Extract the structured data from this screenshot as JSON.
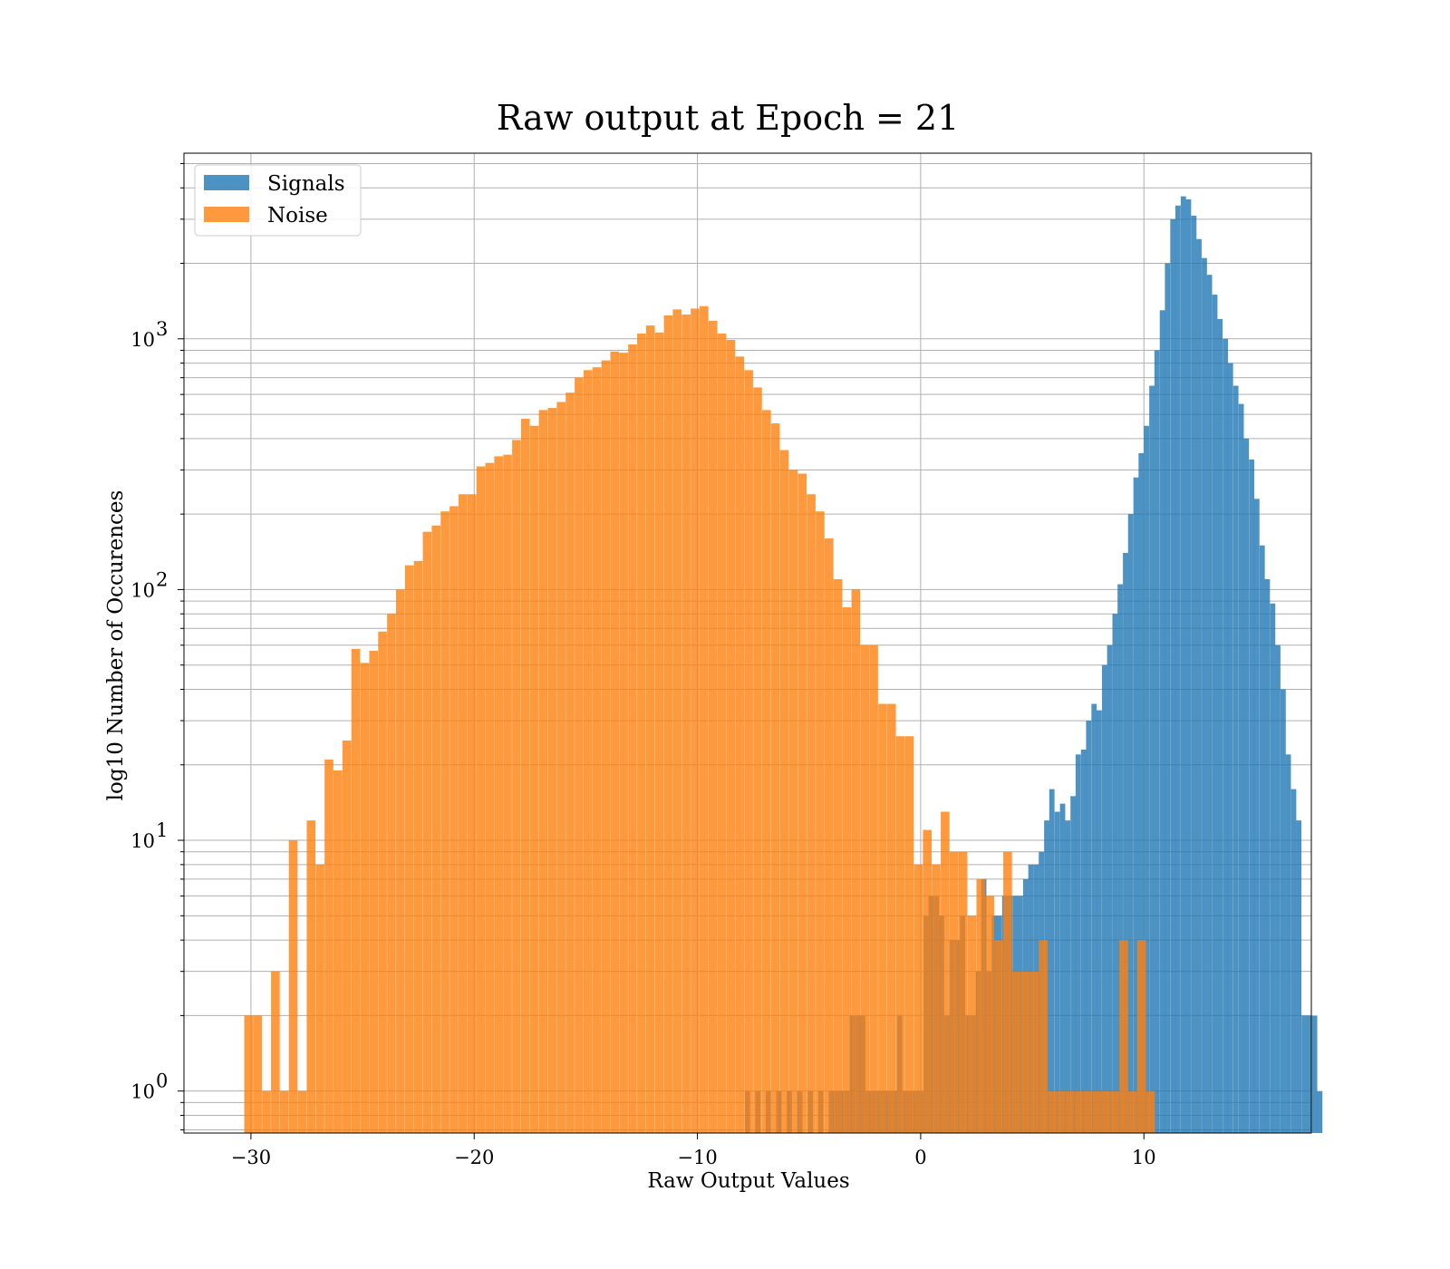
{
  "chart_data": {
    "type": "bar",
    "title": "Raw output at Epoch = 21",
    "xlabel": "Raw Output Values",
    "ylabel": "log10 Number of Occurences",
    "xlim": [
      -33,
      17.5
    ],
    "ylim": [
      0.68,
      5500
    ],
    "yscale": "log",
    "grid": true,
    "legend": "top-left",
    "x_ticks": [
      -30,
      -20,
      -10,
      0,
      10
    ],
    "x_tick_labels": [
      "−30",
      "−20",
      "−10",
      "0",
      "10"
    ],
    "y_ticks": [
      1,
      10,
      100,
      1000
    ],
    "y_tick_labels": [
      "10",
      "10",
      "10",
      "10"
    ],
    "y_tick_exponents": [
      "0",
      "1",
      "2",
      "3"
    ],
    "series": [
      {
        "name": "Signals",
        "color": "#1f77b4",
        "bin_width": 0.235,
        "bins": [
          [
            -7.88,
            1
          ],
          [
            -7.41,
            1
          ],
          [
            -6.94,
            1
          ],
          [
            -6.47,
            1
          ],
          [
            -6.0,
            1
          ],
          [
            -5.53,
            1
          ],
          [
            -5.06,
            1
          ],
          [
            -4.59,
            1
          ],
          [
            -4.12,
            1
          ],
          [
            -3.88,
            1
          ],
          [
            -3.65,
            1
          ],
          [
            -3.41,
            1
          ],
          [
            -3.18,
            2
          ],
          [
            -2.94,
            2
          ],
          [
            -2.71,
            2
          ],
          [
            -2.47,
            1
          ],
          [
            -2.24,
            1
          ],
          [
            -2.0,
            1
          ],
          [
            -1.76,
            1
          ],
          [
            -1.53,
            1
          ],
          [
            -1.29,
            1
          ],
          [
            -1.06,
            2
          ],
          [
            -0.82,
            1
          ],
          [
            -0.59,
            1
          ],
          [
            -0.35,
            1
          ],
          [
            -0.12,
            1
          ],
          [
            0.12,
            5
          ],
          [
            0.35,
            6
          ],
          [
            0.59,
            6
          ],
          [
            0.82,
            5
          ],
          [
            1.06,
            2
          ],
          [
            1.29,
            4
          ],
          [
            1.53,
            4
          ],
          [
            1.76,
            5
          ],
          [
            2.0,
            2
          ],
          [
            2.24,
            2
          ],
          [
            2.47,
            3
          ],
          [
            2.71,
            7
          ],
          [
            2.94,
            3
          ],
          [
            3.18,
            5
          ],
          [
            3.41,
            5
          ],
          [
            3.65,
            6
          ],
          [
            3.88,
            6
          ],
          [
            4.12,
            6
          ],
          [
            4.35,
            6
          ],
          [
            4.59,
            7
          ],
          [
            4.82,
            8
          ],
          [
            5.06,
            8
          ],
          [
            5.29,
            9
          ],
          [
            5.53,
            12
          ],
          [
            5.76,
            16
          ],
          [
            6.0,
            13
          ],
          [
            6.24,
            14
          ],
          [
            6.47,
            12
          ],
          [
            6.71,
            15
          ],
          [
            6.94,
            22
          ],
          [
            7.18,
            23
          ],
          [
            7.41,
            30
          ],
          [
            7.65,
            35
          ],
          [
            7.88,
            33
          ],
          [
            8.12,
            50
          ],
          [
            8.35,
            60
          ],
          [
            8.59,
            80
          ],
          [
            8.82,
            105
          ],
          [
            9.06,
            140
          ],
          [
            9.29,
            200
          ],
          [
            9.53,
            280
          ],
          [
            9.76,
            350
          ],
          [
            10.0,
            450
          ],
          [
            10.24,
            650
          ],
          [
            10.47,
            900
          ],
          [
            10.71,
            1300
          ],
          [
            10.94,
            2000
          ],
          [
            11.18,
            3000
          ],
          [
            11.41,
            3400
          ],
          [
            11.65,
            3700
          ],
          [
            11.88,
            3600
          ],
          [
            12.12,
            3100
          ],
          [
            12.35,
            2500
          ],
          [
            12.59,
            2100
          ],
          [
            12.82,
            1800
          ],
          [
            13.06,
            1500
          ],
          [
            13.29,
            1200
          ],
          [
            13.53,
            1000
          ],
          [
            13.76,
            800
          ],
          [
            14.0,
            650
          ],
          [
            14.24,
            550
          ],
          [
            14.47,
            400
          ],
          [
            14.71,
            330
          ],
          [
            14.94,
            230
          ],
          [
            15.18,
            150
          ],
          [
            15.41,
            110
          ],
          [
            15.65,
            88
          ],
          [
            15.88,
            60
          ],
          [
            16.12,
            40
          ],
          [
            16.35,
            22
          ],
          [
            16.59,
            16
          ],
          [
            16.82,
            12
          ],
          [
            17.06,
            2
          ],
          [
            17.29,
            2
          ],
          [
            17.53,
            2
          ],
          [
            17.76,
            1
          ]
        ]
      },
      {
        "name": "Noise",
        "color": "#ff7f0e",
        "bin_width": 0.39,
        "bins": [
          [
            -30.3,
            2
          ],
          [
            -29.9,
            2
          ],
          [
            -29.5,
            1
          ],
          [
            -29.1,
            3
          ],
          [
            -28.7,
            1
          ],
          [
            -28.3,
            10
          ],
          [
            -27.9,
            1
          ],
          [
            -27.5,
            12
          ],
          [
            -27.1,
            8
          ],
          [
            -26.7,
            21
          ],
          [
            -26.3,
            19
          ],
          [
            -25.9,
            25
          ],
          [
            -25.5,
            58
          ],
          [
            -25.1,
            51
          ],
          [
            -24.7,
            57
          ],
          [
            -24.3,
            68
          ],
          [
            -23.9,
            80
          ],
          [
            -23.5,
            100
          ],
          [
            -23.1,
            125
          ],
          [
            -22.7,
            130
          ],
          [
            -22.3,
            170
          ],
          [
            -21.9,
            180
          ],
          [
            -21.5,
            205
          ],
          [
            -21.1,
            215
          ],
          [
            -20.7,
            240
          ],
          [
            -20.3,
            240
          ],
          [
            -19.9,
            310
          ],
          [
            -19.5,
            320
          ],
          [
            -19.1,
            340
          ],
          [
            -18.7,
            345
          ],
          [
            -18.3,
            395
          ],
          [
            -17.9,
            480
          ],
          [
            -17.5,
            450
          ],
          [
            -17.1,
            520
          ],
          [
            -16.7,
            530
          ],
          [
            -16.3,
            560
          ],
          [
            -15.9,
            610
          ],
          [
            -15.5,
            700
          ],
          [
            -15.1,
            750
          ],
          [
            -14.7,
            770
          ],
          [
            -14.3,
            820
          ],
          [
            -13.9,
            890
          ],
          [
            -13.5,
            880
          ],
          [
            -13.1,
            950
          ],
          [
            -12.7,
            1050
          ],
          [
            -12.3,
            1130
          ],
          [
            -11.9,
            1060
          ],
          [
            -11.5,
            1240
          ],
          [
            -11.1,
            1310
          ],
          [
            -10.7,
            1250
          ],
          [
            -10.3,
            1320
          ],
          [
            -9.9,
            1350
          ],
          [
            -9.5,
            1180
          ],
          [
            -9.1,
            1050
          ],
          [
            -8.7,
            990
          ],
          [
            -8.3,
            850
          ],
          [
            -7.9,
            750
          ],
          [
            -7.5,
            640
          ],
          [
            -7.1,
            520
          ],
          [
            -6.7,
            460
          ],
          [
            -6.3,
            360
          ],
          [
            -5.9,
            300
          ],
          [
            -5.5,
            290
          ],
          [
            -5.1,
            240
          ],
          [
            -4.7,
            205
          ],
          [
            -4.3,
            160
          ],
          [
            -3.9,
            110
          ],
          [
            -3.5,
            85
          ],
          [
            -3.1,
            100
          ],
          [
            -2.7,
            60
          ],
          [
            -2.3,
            60
          ],
          [
            -1.9,
            35
          ],
          [
            -1.5,
            35
          ],
          [
            -1.1,
            26
          ],
          [
            -0.7,
            26
          ],
          [
            -0.3,
            8
          ],
          [
            0.1,
            11
          ],
          [
            0.5,
            8
          ],
          [
            0.9,
            13
          ],
          [
            1.3,
            9
          ],
          [
            1.7,
            9
          ],
          [
            2.1,
            5
          ],
          [
            2.5,
            7
          ],
          [
            2.9,
            6
          ],
          [
            3.3,
            4
          ],
          [
            3.7,
            9
          ],
          [
            4.1,
            3
          ],
          [
            4.5,
            3
          ],
          [
            4.9,
            3
          ],
          [
            5.3,
            4
          ],
          [
            5.7,
            1
          ],
          [
            6.1,
            1
          ],
          [
            6.5,
            1
          ],
          [
            6.9,
            1
          ],
          [
            7.3,
            1
          ],
          [
            7.7,
            1
          ],
          [
            8.1,
            1
          ],
          [
            8.5,
            1
          ],
          [
            8.9,
            4
          ],
          [
            9.3,
            1
          ],
          [
            9.7,
            4
          ],
          [
            10.1,
            1
          ]
        ]
      }
    ]
  }
}
